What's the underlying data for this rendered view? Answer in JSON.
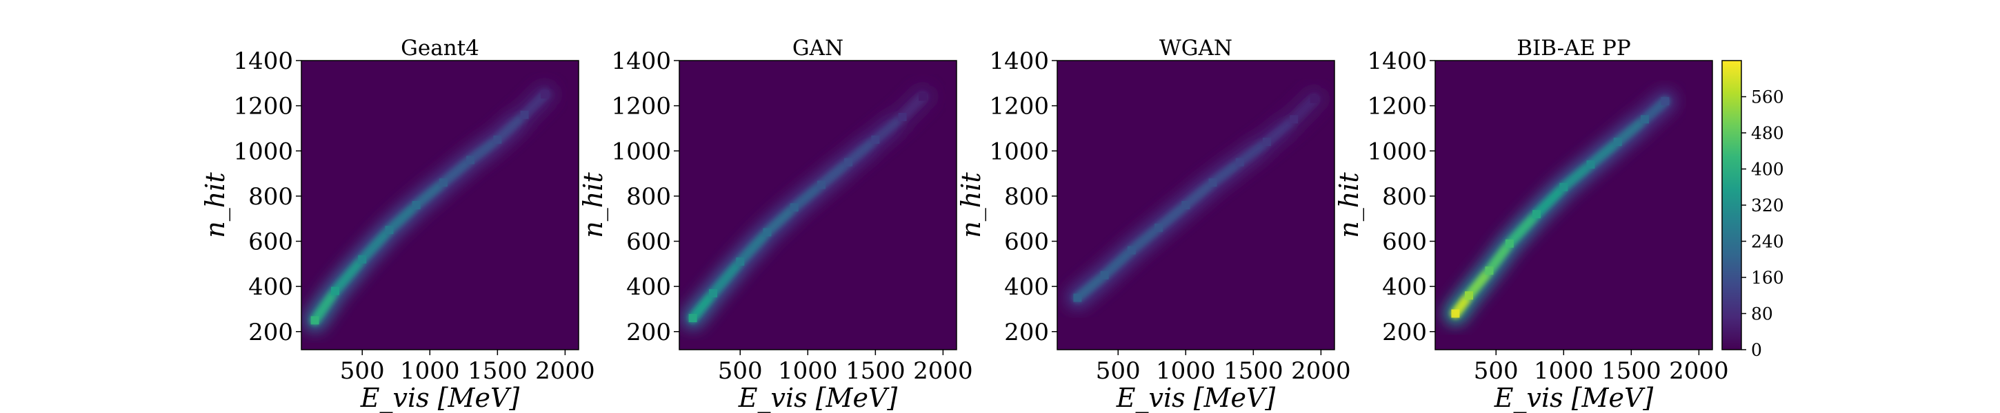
{
  "chart_data": {
    "type": "heatmap",
    "panels": [
      {
        "title": "Geant4",
        "xlabel": "E_vis [MeV]",
        "ylabel": "n_hit",
        "xlim": [
          50,
          2100
        ],
        "ylim": [
          120,
          1400
        ],
        "xticks": [
          500,
          1000,
          1500,
          2000
        ],
        "yticks": [
          200,
          400,
          600,
          800,
          1000,
          1200,
          1400
        ],
        "ridge": {
          "x": [
            150,
            300,
            500,
            700,
            900,
            1100,
            1300,
            1500,
            1700,
            1850
          ],
          "y": [
            250,
            380,
            520,
            650,
            760,
            860,
            960,
            1050,
            1160,
            1250
          ],
          "peak_counts": [
            420,
            360,
            300,
            260,
            230,
            190,
            170,
            150,
            120,
            60
          ]
        }
      },
      {
        "title": "GAN",
        "xlabel": "E_vis [MeV]",
        "ylabel": "n_hit",
        "xlim": [
          50,
          2100
        ],
        "ylim": [
          120,
          1400
        ],
        "xticks": [
          500,
          1000,
          1500,
          2000
        ],
        "yticks": [
          200,
          400,
          600,
          800,
          1000,
          1200,
          1400
        ],
        "ridge": {
          "x": [
            150,
            300,
            500,
            700,
            900,
            1100,
            1300,
            1500,
            1700,
            1850
          ],
          "y": [
            260,
            370,
            510,
            640,
            750,
            850,
            950,
            1050,
            1150,
            1240
          ],
          "peak_counts": [
            380,
            330,
            270,
            230,
            200,
            170,
            150,
            130,
            90,
            40
          ]
        }
      },
      {
        "title": "WGAN",
        "xlabel": "E_vis [MeV]",
        "ylabel": "n_hit",
        "xlim": [
          50,
          2100
        ],
        "ylim": [
          120,
          1400
        ],
        "xticks": [
          500,
          1000,
          1500,
          2000
        ],
        "yticks": [
          200,
          400,
          600,
          800,
          1000,
          1200,
          1400
        ],
        "ridge": {
          "x": [
            200,
            400,
            600,
            800,
            1000,
            1200,
            1400,
            1600,
            1800,
            1950
          ],
          "y": [
            350,
            450,
            560,
            660,
            760,
            860,
            950,
            1040,
            1140,
            1230
          ],
          "peak_counts": [
            200,
            190,
            180,
            170,
            160,
            150,
            130,
            110,
            80,
            40
          ]
        }
      },
      {
        "title": "BIB-AE PP",
        "xlabel": "E_vis [MeV]",
        "ylabel": "n_hit",
        "xlim": [
          50,
          2100
        ],
        "ylim": [
          120,
          1400
        ],
        "xticks": [
          500,
          1000,
          1500,
          2000
        ],
        "yticks": [
          200,
          400,
          600,
          800,
          1000,
          1200,
          1400
        ],
        "ridge": {
          "x": [
            200,
            300,
            450,
            600,
            800,
            1000,
            1200,
            1400,
            1600,
            1750
          ],
          "y": [
            280,
            360,
            470,
            590,
            720,
            840,
            940,
            1040,
            1140,
            1220
          ],
          "peak_counts": [
            620,
            540,
            470,
            440,
            380,
            330,
            300,
            260,
            220,
            150
          ]
        }
      }
    ],
    "colorbar": {
      "min": 0,
      "max": 640,
      "ticks": [
        "0",
        "80",
        "160",
        "240",
        "320",
        "400",
        "480",
        "560"
      ],
      "colormap": "viridis"
    },
    "grid": false,
    "legend": "none"
  },
  "colors": {
    "background": "#440154",
    "viridis": [
      "#440154",
      "#482878",
      "#3e4989",
      "#31688e",
      "#26828e",
      "#1f9e89",
      "#35b779",
      "#6ece58",
      "#b5de2b",
      "#fde725"
    ]
  }
}
